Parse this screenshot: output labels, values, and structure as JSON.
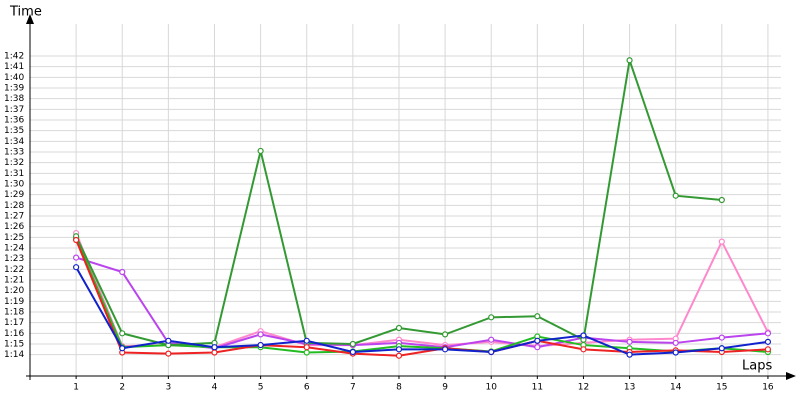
{
  "chart_data": {
    "type": "line",
    "ylabel": "Time",
    "xlabel": "Laps",
    "x": [
      1,
      2,
      3,
      4,
      5,
      6,
      7,
      8,
      9,
      10,
      11,
      12,
      13,
      14,
      15,
      16
    ],
    "xlim": [
      0,
      16.5
    ],
    "xticks": [
      1,
      2,
      3,
      4,
      5,
      6,
      7,
      8,
      9,
      10,
      11,
      12,
      13,
      14,
      15,
      16
    ],
    "ylim": [
      72,
      105
    ],
    "yticks": [
      {
        "value": 74,
        "label": "1:14"
      },
      {
        "value": 75,
        "label": "1:15"
      },
      {
        "value": 76,
        "label": "1:16"
      },
      {
        "value": 77,
        "label": "1:17"
      },
      {
        "value": 78,
        "label": "1:18"
      },
      {
        "value": 79,
        "label": "1:19"
      },
      {
        "value": 80,
        "label": "1:20"
      },
      {
        "value": 81,
        "label": "1:21"
      },
      {
        "value": 82,
        "label": "1:22"
      },
      {
        "value": 83,
        "label": "1:23"
      },
      {
        "value": 84,
        "label": "1:24"
      },
      {
        "value": 85,
        "label": "1:25"
      },
      {
        "value": 86,
        "label": "1:26"
      },
      {
        "value": 87,
        "label": "1:27"
      },
      {
        "value": 88,
        "label": "1:28"
      },
      {
        "value": 89,
        "label": "1:29"
      },
      {
        "value": 90,
        "label": "1:30"
      },
      {
        "value": 91,
        "label": "1:31"
      },
      {
        "value": 92,
        "label": "1:32"
      },
      {
        "value": 93,
        "label": "1:33"
      },
      {
        "value": 94,
        "label": "1:34"
      },
      {
        "value": 95,
        "label": "1:35"
      },
      {
        "value": 96,
        "label": "1:36"
      },
      {
        "value": 97,
        "label": "1:37"
      },
      {
        "value": 98,
        "label": "1:38"
      },
      {
        "value": 99,
        "label": "1:39"
      },
      {
        "value": 100,
        "label": "1:40"
      },
      {
        "value": 101,
        "label": "1:41"
      },
      {
        "value": 102,
        "label": "1:42"
      }
    ],
    "grid": true,
    "series": [
      {
        "color": "#ff88cc",
        "values": [
          85.4,
          74.8,
          74.9,
          74.7,
          76.2,
          74.9,
          74.9,
          75.4,
          74.9,
          75.2,
          74.8,
          75.1,
          75.4,
          75.5,
          84.6,
          76.1
        ]
      },
      {
        "color": "#bb44ee",
        "values": [
          83.1,
          81.75,
          75.1,
          74.6,
          75.9,
          75.0,
          74.9,
          75.1,
          74.7,
          75.4,
          74.7,
          75.6,
          75.2,
          75.1,
          75.6,
          76.0
        ]
      },
      {
        "color": "#22bb22",
        "values": [
          84.9,
          74.7,
          74.9,
          74.7,
          74.7,
          74.2,
          74.3,
          74.8,
          74.6,
          74.3,
          75.7,
          74.9,
          74.6,
          74.3,
          74.6,
          74.25
        ]
      },
      {
        "color": "#339933",
        "values": [
          85.1,
          76.0,
          74.9,
          75.1,
          93.1,
          75.1,
          75.0,
          76.5,
          75.9,
          77.5,
          77.6,
          75.4,
          101.6,
          88.9,
          88.5,
          null
        ]
      },
      {
        "color": "#ee2222",
        "values": [
          84.75,
          74.2,
          74.1,
          74.2,
          74.9,
          74.7,
          74.1,
          73.9,
          74.6,
          74.25,
          75.3,
          74.5,
          74.25,
          74.4,
          74.25,
          74.5
        ]
      },
      {
        "color": "#1122cc",
        "values": [
          82.2,
          74.6,
          75.3,
          74.7,
          74.9,
          75.3,
          74.25,
          74.5,
          74.5,
          74.25,
          75.3,
          75.8,
          74.0,
          74.2,
          74.6,
          75.2
        ]
      }
    ]
  }
}
